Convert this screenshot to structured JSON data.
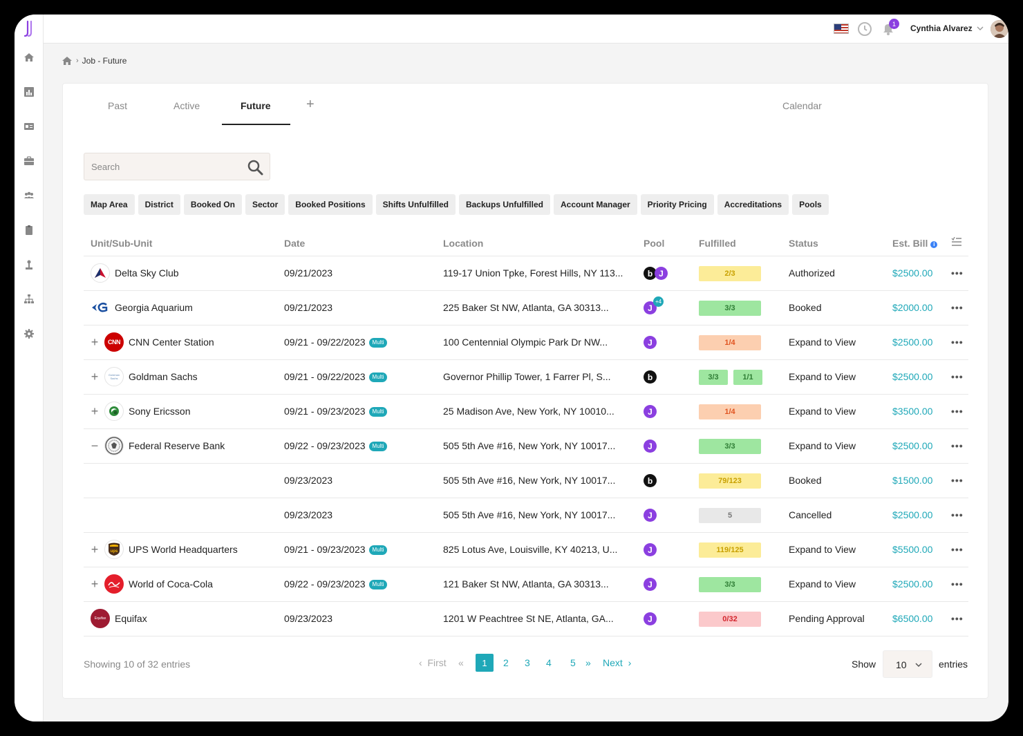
{
  "app": {
    "user_name": "Cynthia Alvarez",
    "notification_count": "1"
  },
  "breadcrumb": {
    "current": "Job - Future"
  },
  "tabs": {
    "past": "Past",
    "active": "Active",
    "future": "Future",
    "add": "+",
    "calendar": "Calendar"
  },
  "search": {
    "placeholder": "Search"
  },
  "filters": [
    "Map Area",
    "District",
    "Booked On",
    "Sector",
    "Booked Positions",
    "Shifts Unfulfilled",
    "Backups Unfulfilled",
    "Account Manager",
    "Priority Pricing",
    "Accreditations",
    "Pools"
  ],
  "table": {
    "headers": {
      "unit": "Unit/Sub-Unit",
      "date": "Date",
      "location": "Location",
      "pool": "Pool",
      "fulfilled": "Fulfilled",
      "status": "Status",
      "bill": "Est. Bill"
    },
    "multi_label": "Multi",
    "rows": [
      {
        "unit": "Delta Sky Club",
        "date": "09/21/2023",
        "location": "119-17 Union Tpke, Forest Hills, NY 113...",
        "fulfilled": "2/3",
        "status": "Authorized",
        "bill": "$2500.00",
        "pool_plus": ""
      },
      {
        "unit": "Georgia Aquarium",
        "date": "09/21/2023",
        "location": "225 Baker St NW, Atlanta, GA 30313...",
        "fulfilled": "3/3",
        "status": "Booked",
        "bill": "$2000.00",
        "pool_plus": "+4"
      },
      {
        "unit": "CNN Center Station",
        "date": "09/21 - 09/22/2023",
        "location": "100 Centennial Olympic Park Dr NW...",
        "fulfilled": "1/4",
        "status": "Expand to View",
        "bill": "$2500.00"
      },
      {
        "unit": "Goldman Sachs",
        "date": "09/21 - 09/22/2023",
        "location": "Governor Phillip Tower, 1 Farrer Pl, S...",
        "fulfilled": "3/3",
        "fulfilled2": "1/1",
        "status": "Expand to View",
        "bill": "$2500.00"
      },
      {
        "unit": "Sony Ericsson",
        "date": "09/21 - 09/23/2023",
        "location": "25 Madison Ave, New York, NY 10010...",
        "fulfilled": "1/4",
        "status": "Expand to View",
        "bill": "$3500.00"
      },
      {
        "unit": "Federal Reserve Bank",
        "date": "09/22 - 09/23/2023",
        "location": "505 5th Ave #16, New York, NY 10017...",
        "fulfilled": "3/3",
        "status": "Expand to View",
        "bill": "$2500.00"
      },
      {
        "unit": "",
        "date": "09/23/2023",
        "location": "505 5th Ave #16, New York, NY 10017...",
        "fulfilled": "79/123",
        "status": "Booked",
        "bill": "$1500.00"
      },
      {
        "unit": "",
        "date": "09/23/2023",
        "location": "505 5th Ave #16, New York, NY 10017...",
        "fulfilled": "5",
        "status": "Cancelled",
        "bill": "$2500.00"
      },
      {
        "unit": "UPS World Headquarters",
        "date": "09/21 - 09/23/2023",
        "location": "825 Lotus Ave, Louisville, KY 40213, U...",
        "fulfilled": "119/125",
        "status": "Expand to View",
        "bill": "$5500.00"
      },
      {
        "unit": "World of Coca-Cola",
        "date": "09/22 - 09/23/2023",
        "location": "121 Baker St NW, Atlanta, GA 30313...",
        "fulfilled": "3/3",
        "status": "Expand to View",
        "bill": "$2500.00"
      },
      {
        "unit": "Equifax",
        "date": "09/23/2023",
        "location": "1201 W Peachtree St NE, Atlanta, GA...",
        "fulfilled": "0/32",
        "status": "Pending Approval",
        "bill": "$6500.00"
      }
    ]
  },
  "logos": {
    "cnn": "CNN",
    "ups": "ups",
    "goldman": "Goldman Sachs",
    "equifax": "Equifax"
  },
  "pagination": {
    "showing": "Showing 10 of 32 entries",
    "first": "First",
    "pages": [
      "1",
      "2",
      "3",
      "4",
      "5"
    ],
    "next": "Next",
    "show": "Show",
    "page_size": "10",
    "entries": "entries"
  },
  "colors": {
    "accent": "#1fa8b8",
    "brand": "#8b3fe0"
  }
}
